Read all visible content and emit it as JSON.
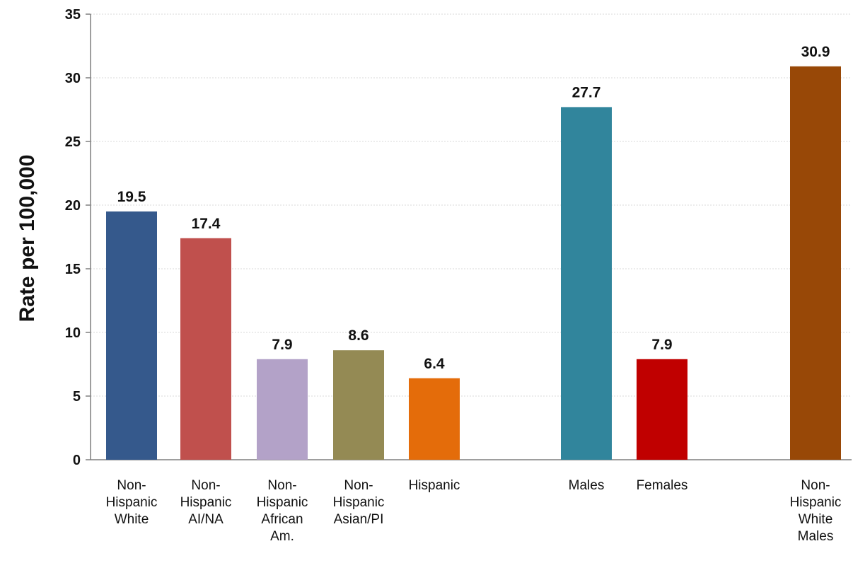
{
  "chart_data": {
    "type": "bar",
    "title": "",
    "xlabel": "",
    "ylabel": "Rate per 100,000",
    "ylim": [
      0,
      35
    ],
    "yticks": [
      0,
      5,
      10,
      15,
      20,
      25,
      30,
      35
    ],
    "grid": true,
    "legend": "none",
    "categories": [
      "Non-Hispanic White",
      "Non-Hispanic AI/NA",
      "Non-Hispanic African Am.",
      "Non-Hispanic Asian/PI",
      "Hispanic",
      "Males",
      "Females",
      "Non-Hispanic White Males"
    ],
    "category_label_lines": [
      [
        "Non-",
        "Hispanic",
        "White"
      ],
      [
        "Non-",
        "Hispanic",
        "AI/NA"
      ],
      [
        "Non-",
        "Hispanic",
        "African",
        "Am."
      ],
      [
        "Non-",
        "Hispanic",
        "Asian/PI"
      ],
      [
        "Hispanic"
      ],
      [
        "Males"
      ],
      [
        "Females"
      ],
      [
        "Non-",
        "Hispanic",
        "White",
        "Males"
      ]
    ],
    "values": [
      19.5,
      17.4,
      7.9,
      8.6,
      6.4,
      27.7,
      7.9,
      30.9
    ],
    "value_labels": [
      "19.5",
      "17.4",
      "7.9",
      "8.6",
      "6.4",
      "27.7",
      "7.9",
      "30.9"
    ],
    "colors": [
      "#35598c",
      "#c0504d",
      "#b3a2c8",
      "#948a54",
      "#e46c0a",
      "#31859c",
      "#c00000",
      "#984807"
    ]
  }
}
